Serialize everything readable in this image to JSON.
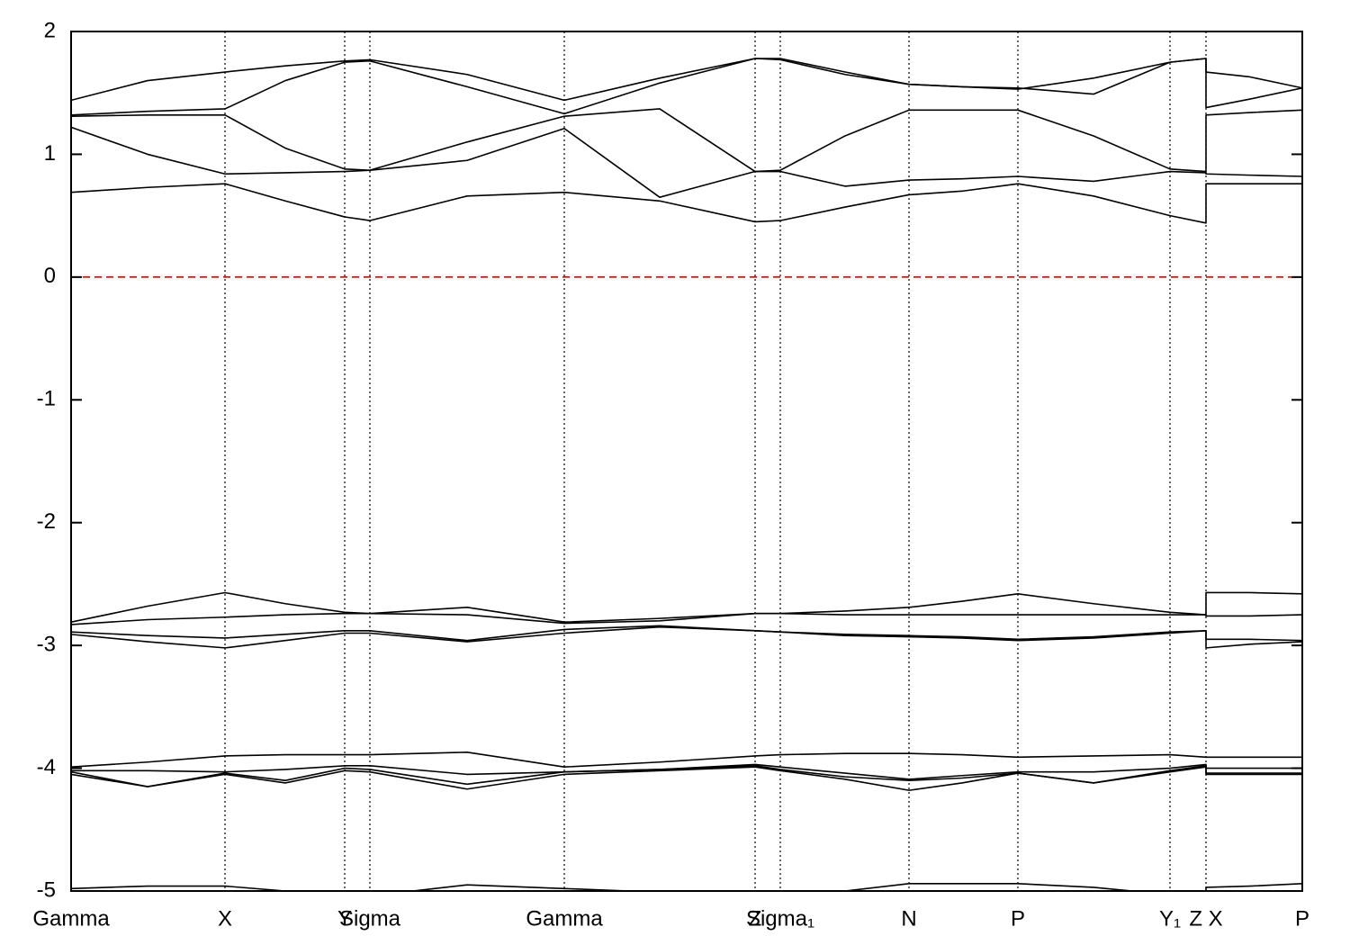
{
  "chart_data": {
    "type": "line",
    "xlim": [
      0,
      1.368
    ],
    "ylim": [
      -5,
      2
    ],
    "yticks": [
      -5,
      -4,
      -3,
      -2,
      -1,
      0,
      1,
      2
    ],
    "xticks": [
      {
        "value": 0,
        "label": "Gamma"
      },
      {
        "value": 0.171,
        "label": "X"
      },
      {
        "value": 0.304,
        "label": "Y"
      },
      {
        "value": 0.332,
        "label": "Sigma"
      },
      {
        "value": 0.548,
        "label": "Gamma"
      },
      {
        "value": 0.76,
        "label": "Z"
      },
      {
        "value": 0.788,
        "label": "Sigma₁"
      },
      {
        "value": 0.931,
        "label": "N"
      },
      {
        "value": 1.052,
        "label": "P"
      },
      {
        "value": 1.221,
        "label": "Y₁"
      },
      {
        "value": 1.261,
        "label": "Z X"
      },
      {
        "value": 1.368,
        "label": "P"
      }
    ],
    "grid": true,
    "hline": {
      "value": 0,
      "color": "#e00000"
    },
    "x": [
      0,
      0.085,
      0.171,
      0.238,
      0.304,
      0.332,
      0.44,
      0.548,
      0.654,
      0.76,
      0.788,
      0.86,
      0.931,
      0.99,
      1.052,
      1.136,
      1.221,
      1.261,
      1.261,
      1.31,
      1.368
    ],
    "series": [
      {
        "color": "#000000",
        "values": [
          0.69,
          0.73,
          0.76,
          0.62,
          0.49,
          0.46,
          0.66,
          0.69,
          0.62,
          0.45,
          0.46,
          0.57,
          0.67,
          0.7,
          0.76,
          0.66,
          0.5,
          0.44,
          0.76,
          0.76,
          0.76
        ]
      },
      {
        "color": "#000000",
        "values": [
          1.22,
          1.0,
          0.84,
          0.85,
          0.86,
          0.87,
          0.95,
          1.21,
          0.65,
          0.86,
          0.86,
          0.74,
          0.79,
          0.8,
          0.82,
          0.78,
          0.86,
          0.85,
          0.84,
          0.83,
          0.82
        ]
      },
      {
        "color": "#000000",
        "values": [
          1.31,
          1.32,
          1.32,
          1.05,
          0.88,
          0.87,
          1.1,
          1.31,
          1.37,
          0.86,
          0.87,
          1.15,
          1.36,
          1.36,
          1.36,
          1.15,
          0.88,
          0.86,
          1.32,
          1.34,
          1.36
        ]
      },
      {
        "color": "#000000",
        "values": [
          1.32,
          1.35,
          1.37,
          1.6,
          1.75,
          1.76,
          1.55,
          1.33,
          1.58,
          1.78,
          1.77,
          1.65,
          1.57,
          1.55,
          1.53,
          1.62,
          1.75,
          1.78,
          1.38,
          1.45,
          1.54
        ]
      },
      {
        "color": "#000000",
        "values": [
          1.44,
          1.6,
          1.67,
          1.72,
          1.76,
          1.77,
          1.65,
          1.44,
          1.62,
          1.78,
          1.78,
          1.67,
          1.57,
          1.55,
          1.54,
          1.49,
          1.75,
          1.78,
          1.67,
          1.63,
          1.54
        ]
      },
      {
        "color": "#000000",
        "values": [
          -2.81,
          -2.68,
          -2.57,
          -2.66,
          -2.73,
          -2.74,
          -2.69,
          -2.81,
          -2.78,
          -2.74,
          -2.74,
          -2.72,
          -2.69,
          -2.64,
          -2.58,
          -2.66,
          -2.73,
          -2.75,
          -2.57,
          -2.57,
          -2.58
        ]
      },
      {
        "color": "#000000",
        "values": [
          -2.83,
          -2.79,
          -2.77,
          -2.75,
          -2.74,
          -2.74,
          -2.75,
          -2.82,
          -2.8,
          -2.74,
          -2.74,
          -2.75,
          -2.75,
          -2.75,
          -2.75,
          -2.75,
          -2.75,
          -2.75,
          -2.76,
          -2.76,
          -2.75
        ]
      },
      {
        "color": "#000000",
        "values": [
          -2.89,
          -2.92,
          -2.94,
          -2.91,
          -2.88,
          -2.88,
          -2.96,
          -2.87,
          -2.84,
          -2.88,
          -2.89,
          -2.91,
          -2.92,
          -2.93,
          -2.95,
          -2.93,
          -2.89,
          -2.88,
          -2.95,
          -2.95,
          -2.96
        ]
      },
      {
        "color": "#000000",
        "values": [
          -2.91,
          -2.97,
          -3.02,
          -2.96,
          -2.9,
          -2.9,
          -2.97,
          -2.9,
          -2.85,
          -2.88,
          -2.89,
          -2.92,
          -2.93,
          -2.94,
          -2.96,
          -2.94,
          -2.9,
          -2.88,
          -3.02,
          -2.99,
          -2.97
        ]
      },
      {
        "color": "#000000",
        "values": [
          -3.99,
          -3.95,
          -3.9,
          -3.89,
          -3.89,
          -3.89,
          -3.87,
          -3.99,
          -3.95,
          -3.9,
          -3.89,
          -3.88,
          -3.88,
          -3.89,
          -3.91,
          -3.9,
          -3.89,
          -3.91,
          -3.91,
          -3.91,
          -3.91
        ]
      },
      {
        "color": "#000000",
        "values": [
          -4.02,
          -4.02,
          -4.03,
          -4.01,
          -3.98,
          -3.98,
          -4.05,
          -4.03,
          -4.01,
          -3.97,
          -3.99,
          -4.04,
          -4.09,
          -4.06,
          -4.03,
          -4.03,
          -4.0,
          -3.97,
          -4.0,
          -4.0,
          -4.0
        ]
      },
      {
        "color": "#000000",
        "values": [
          -4.03,
          -4.15,
          -4.04,
          -4.1,
          -4.0,
          -4.01,
          -4.13,
          -4.03,
          -4.01,
          -3.98,
          -4.01,
          -4.07,
          -4.1,
          -4.08,
          -4.04,
          -4.12,
          -4.02,
          -3.98,
          -4.04,
          -4.04,
          -4.04
        ]
      },
      {
        "color": "#000000",
        "values": [
          -4.05,
          -4.15,
          -4.05,
          -4.12,
          -4.02,
          -4.03,
          -4.17,
          -4.05,
          -4.02,
          -3.99,
          -4.02,
          -4.09,
          -4.18,
          -4.12,
          -4.04,
          -4.12,
          -4.03,
          -3.99,
          -4.05,
          -4.05,
          -4.05
        ]
      },
      {
        "color": "#000000",
        "values": [
          -4.98,
          -4.96,
          -4.96,
          -5.0,
          -5.03,
          -5.04,
          -4.95,
          -4.98,
          -5.01,
          -5.05,
          -5.05,
          -5.0,
          -4.94,
          -4.94,
          -4.94,
          -4.97,
          -5.03,
          -5.04,
          -4.97,
          -4.96,
          -4.94
        ]
      }
    ]
  }
}
